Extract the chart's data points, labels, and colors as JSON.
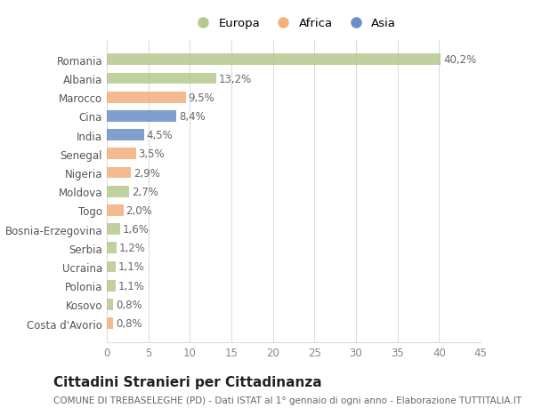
{
  "categories": [
    "Romania",
    "Albania",
    "Marocco",
    "Cina",
    "India",
    "Senegal",
    "Nigeria",
    "Moldova",
    "Togo",
    "Bosnia-Erzegovina",
    "Serbia",
    "Ucraina",
    "Polonia",
    "Kosovo",
    "Costa d'Avorio"
  ],
  "values": [
    40.2,
    13.2,
    9.5,
    8.4,
    4.5,
    3.5,
    2.9,
    2.7,
    2.0,
    1.6,
    1.2,
    1.1,
    1.1,
    0.8,
    0.8
  ],
  "labels": [
    "40,2%",
    "13,2%",
    "9,5%",
    "8,4%",
    "4,5%",
    "3,5%",
    "2,9%",
    "2,7%",
    "2,0%",
    "1,6%",
    "1,2%",
    "1,1%",
    "1,1%",
    "0,8%",
    "0,8%"
  ],
  "continents": [
    "Europa",
    "Europa",
    "Africa",
    "Asia",
    "Asia",
    "Africa",
    "Africa",
    "Europa",
    "Africa",
    "Europa",
    "Europa",
    "Europa",
    "Europa",
    "Europa",
    "Africa"
  ],
  "colors": {
    "Europa": "#b5c98e",
    "Africa": "#f2b07b",
    "Asia": "#6b8ec4"
  },
  "xlim": [
    0,
    45
  ],
  "xticks": [
    0,
    5,
    10,
    15,
    20,
    25,
    30,
    35,
    40,
    45
  ],
  "title": "Cittadini Stranieri per Cittadinanza",
  "subtitle": "COMUNE DI TREBASELEGHE (PD) - Dati ISTAT al 1° gennaio di ogni anno - Elaborazione TUTTITALIA.IT",
  "background_color": "#ffffff",
  "plot_bg_color": "#ffffff",
  "grid_color": "#dddddd",
  "bar_height": 0.6,
  "label_fontsize": 8.5,
  "tick_fontsize": 8.5,
  "ytick_fontsize": 8.5,
  "title_fontsize": 11,
  "subtitle_fontsize": 7.5,
  "legend_fontsize": 9.5
}
